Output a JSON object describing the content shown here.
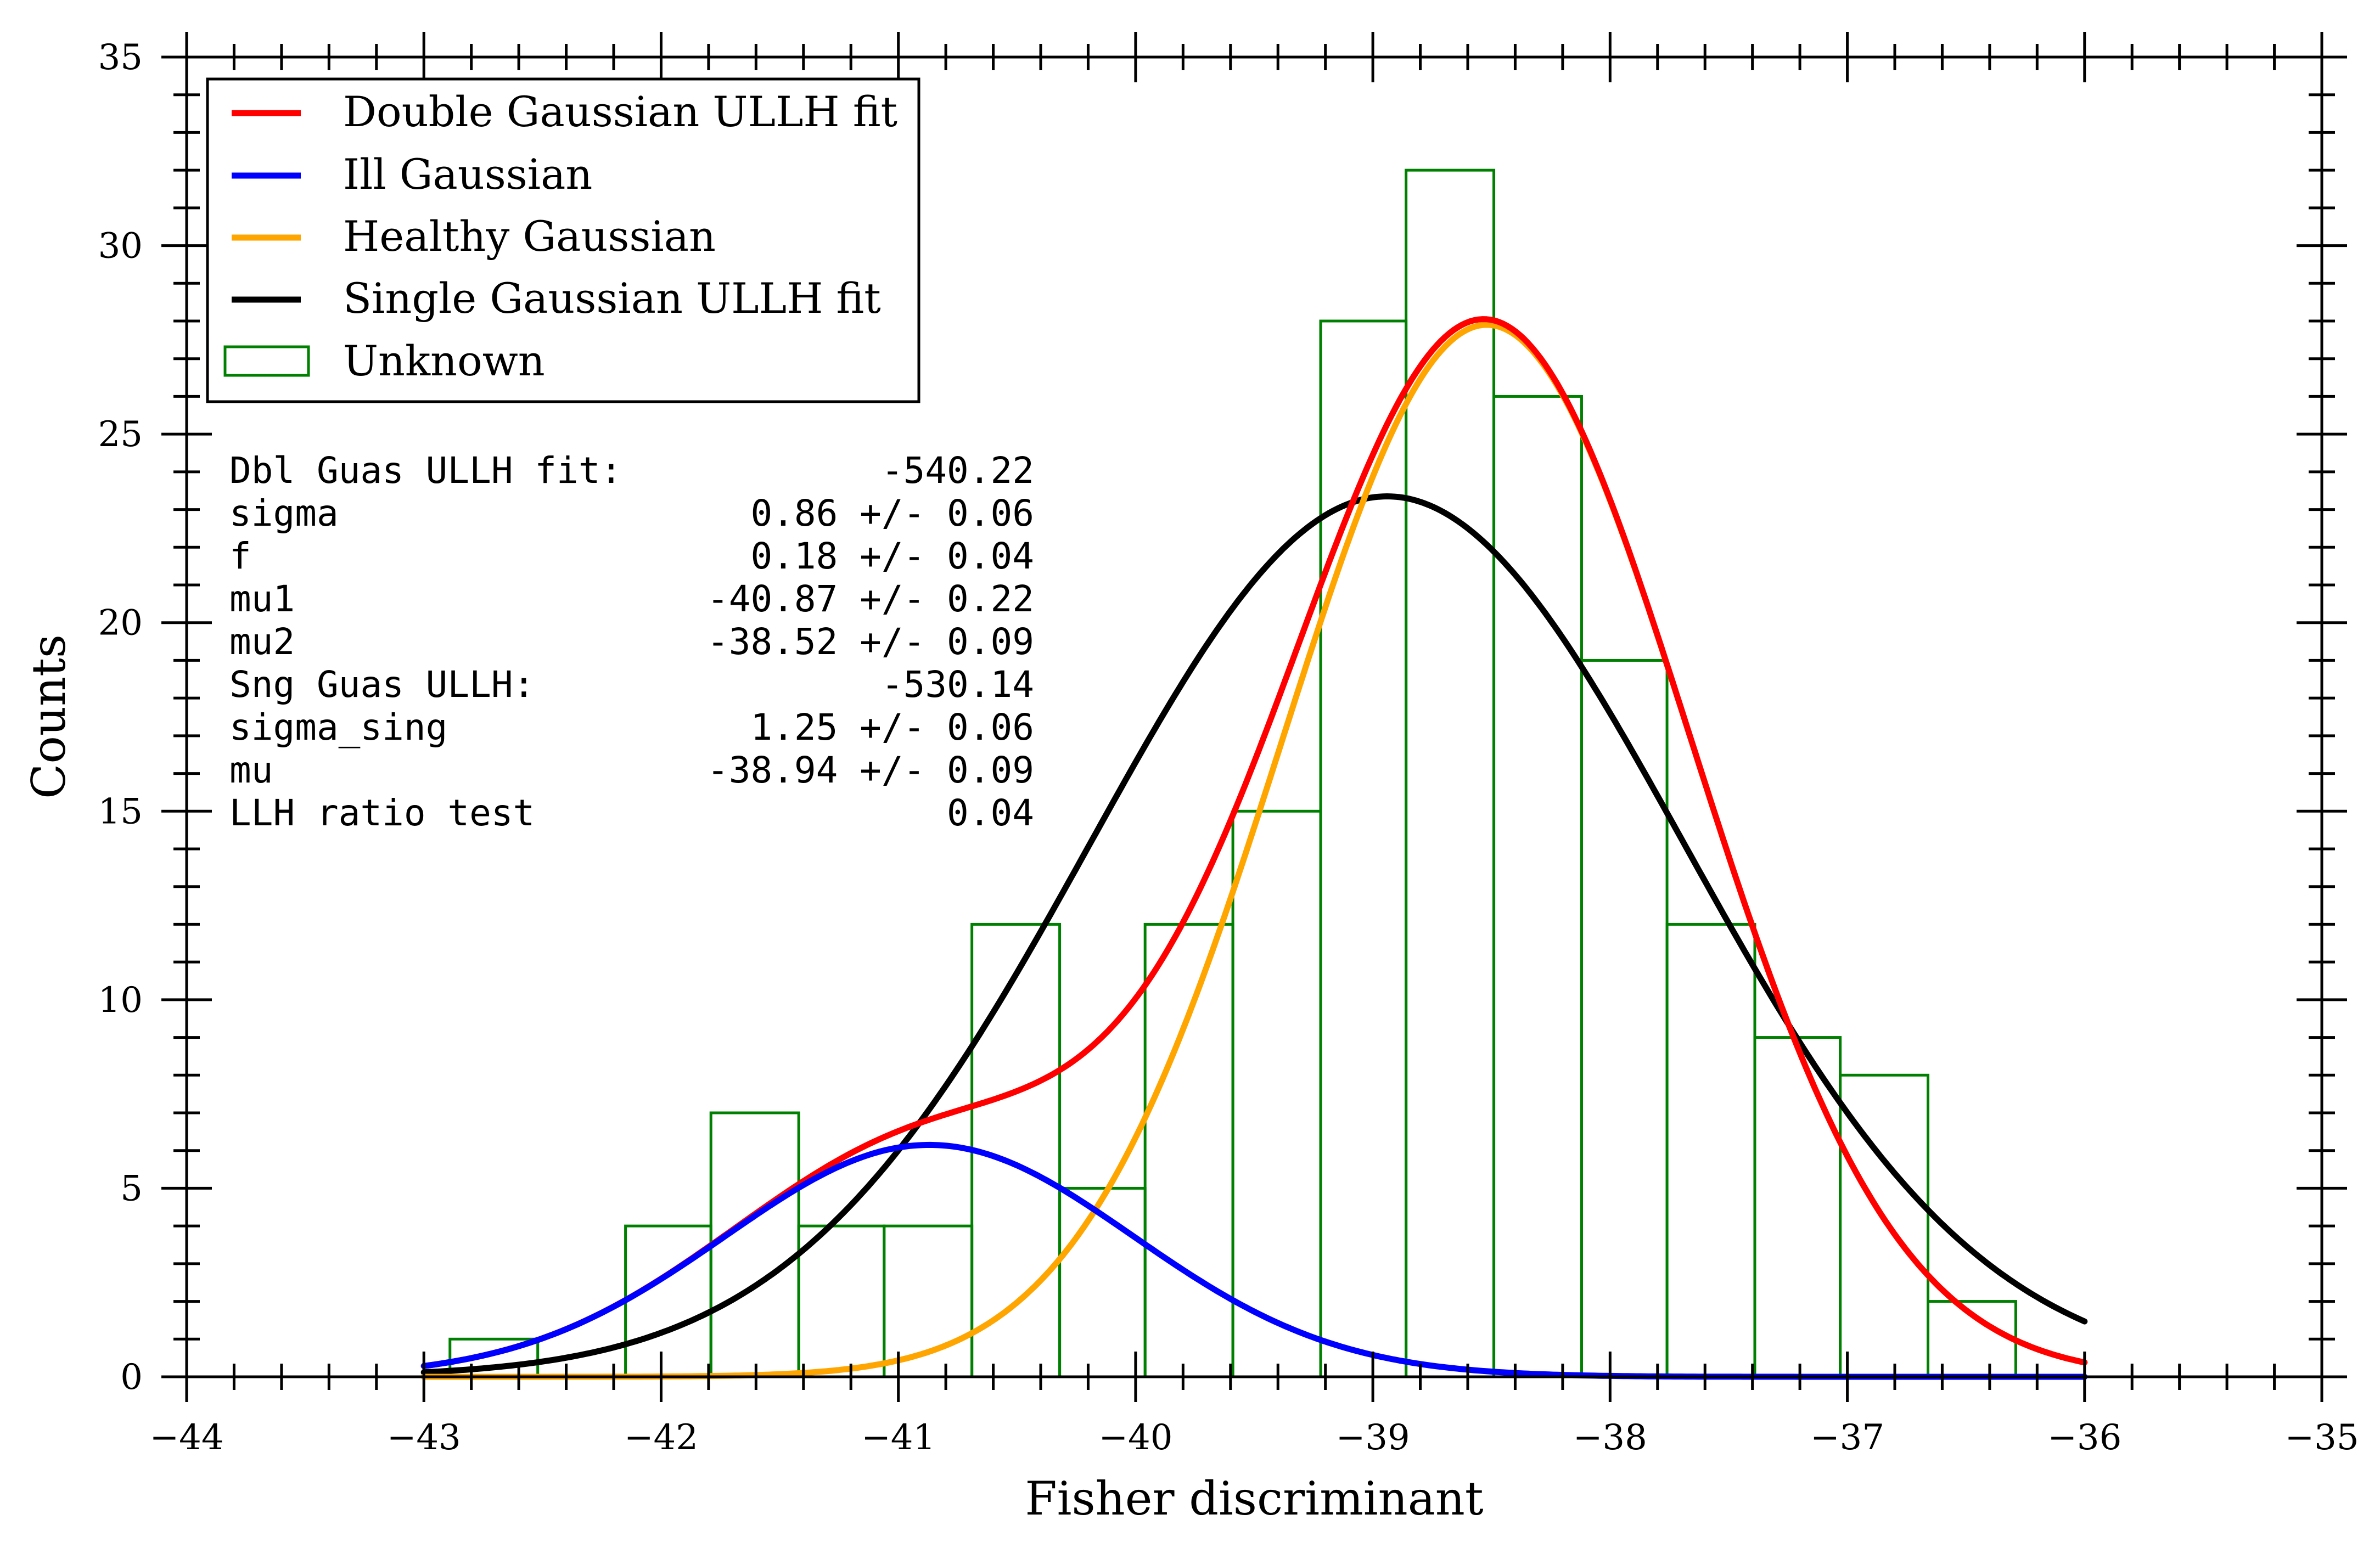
{
  "chart_data": {
    "type": "line",
    "title": "",
    "xlabel": "Fisher discriminant",
    "ylabel": "Counts",
    "xlim": [
      -44,
      -35
    ],
    "ylim": [
      0,
      35
    ],
    "x_ticks": [
      -44,
      -43,
      -42,
      -41,
      -40,
      -39,
      -38,
      -37,
      -36,
      -35
    ],
    "x_tick_labels": [
      "−44",
      "−43",
      "−42",
      "−41",
      "−40",
      "−39",
      "−38",
      "−37",
      "−36",
      "−35"
    ],
    "y_ticks": [
      0,
      5,
      10,
      15,
      20,
      25,
      30,
      35
    ],
    "y_tick_labels": [
      "0",
      "5",
      "10",
      "15",
      "20",
      "25",
      "30",
      "35"
    ],
    "grid": false,
    "legend_position": "top-left",
    "legend": [
      {
        "label": "Double Gaussian ULLH fit",
        "color": "#ff0000",
        "kind": "line"
      },
      {
        "label": "Ill Gaussian",
        "color": "#0000ff",
        "kind": "line"
      },
      {
        "label": "Healthy Gaussian",
        "color": "#ffa500",
        "kind": "line"
      },
      {
        "label": "Single Gaussian ULLH fit",
        "color": "#000000",
        "kind": "line"
      },
      {
        "label": "Unknown",
        "color": "#008000",
        "kind": "hist"
      }
    ],
    "histogram": {
      "name": "Unknown",
      "color": "#008000",
      "bin_edges": [
        -42.89,
        -42.52,
        -42.15,
        -41.79,
        -41.42,
        -41.06,
        -40.69,
        -40.32,
        -39.96,
        -39.59,
        -39.22,
        -38.86,
        -38.49,
        -38.12,
        -37.76,
        -37.39,
        -37.03,
        -36.66,
        -36.29
      ],
      "counts": [
        1,
        0,
        4,
        7,
        4,
        4,
        12,
        5,
        12,
        15,
        28,
        32,
        26,
        19,
        12,
        9,
        8,
        2
      ]
    },
    "series": [
      {
        "name": "Double Gaussian ULLH fit",
        "color": "#ff0000",
        "model": "double",
        "x_range": [
          -43,
          -36
        ]
      },
      {
        "name": "Ill Gaussian",
        "color": "#0000ff",
        "model": "ill",
        "x_range": [
          -43,
          -36
        ]
      },
      {
        "name": "Healthy Gaussian",
        "color": "#ffa500",
        "model": "healthy",
        "x_range": [
          -43,
          -36
        ]
      },
      {
        "name": "Single Gaussian ULLH fit",
        "color": "#000000",
        "model": "single",
        "x_range": [
          -43,
          -36
        ]
      }
    ],
    "fit_params": {
      "double": {
        "sigma": 0.86,
        "f": 0.18,
        "mu1": -40.87,
        "mu2": -38.52
      },
      "single": {
        "sigma": 1.25,
        "mu": -38.94
      },
      "amplitude": {
        "ill_peak": 6.15,
        "healthy_peak": 27.9,
        "single_peak": 23.35
      }
    },
    "stats_box": [
      {
        "label": "Dbl Guas ULLH fit:",
        "value": "-540.22"
      },
      {
        "label": "sigma",
        "value": "0.86 +/- 0.06"
      },
      {
        "label": "f",
        "value": "0.18 +/- 0.04"
      },
      {
        "label": "mu1",
        "value": "-40.87 +/- 0.22"
      },
      {
        "label": "mu2",
        "value": "-38.52 +/- 0.09"
      },
      {
        "label": "Sng Guas ULLH:",
        "value": "-530.14"
      },
      {
        "label": "sigma_sing",
        "value": "1.25 +/- 0.06"
      },
      {
        "label": "mu",
        "value": "-38.94 +/- 0.09"
      },
      {
        "label": "LLH ratio test",
        "value": "0.04"
      }
    ]
  }
}
